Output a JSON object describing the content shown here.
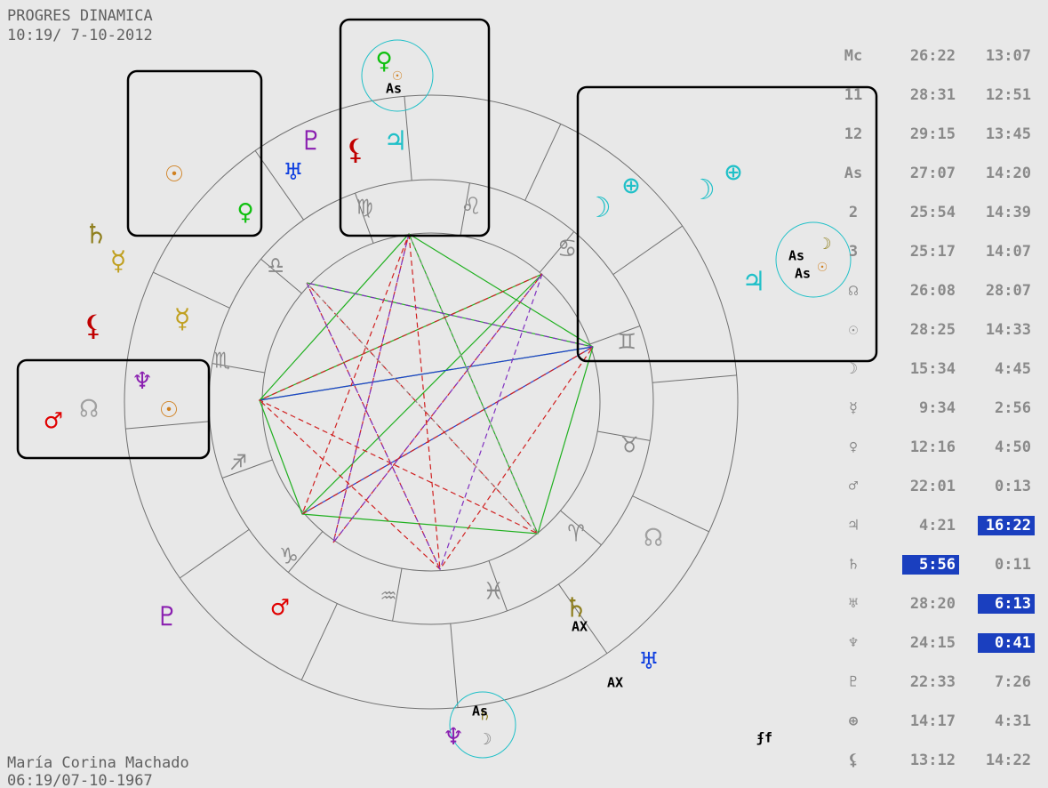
{
  "header": {
    "title": "PROGRES DINAMICA",
    "date": "10:19/ 7-10-2012"
  },
  "footer": {
    "name": "María Corina Machado",
    "date": "06:19/07-10-1967"
  },
  "signs": [
    "♍",
    "♌",
    "♋",
    "♊",
    "♉",
    "♈",
    "♓",
    "♒",
    "♑",
    "♐",
    "♏",
    "♎"
  ],
  "planets": [
    {
      "glyph": "♇",
      "color": "#8a1fb0"
    },
    {
      "glyph": "⚸",
      "color": "#c00000"
    },
    {
      "glyph": "♃",
      "color": "#20c0c8"
    },
    {
      "glyph": "♅",
      "color": "#1040e0"
    },
    {
      "glyph": "♀",
      "color": "#10c010"
    },
    {
      "glyph": "☉",
      "color": "#d08020"
    },
    {
      "glyph": "☉",
      "color": "#d08020"
    },
    {
      "glyph": "♀",
      "color": "#10c010"
    },
    {
      "glyph": "♄",
      "color": "#908020"
    },
    {
      "glyph": "☿",
      "color": "#c0a020"
    },
    {
      "glyph": "⚸",
      "color": "#c00000"
    },
    {
      "glyph": "☿",
      "color": "#c0a020"
    },
    {
      "glyph": "♆",
      "color": "#8a1fb0"
    },
    {
      "glyph": "☊",
      "color": "#a0a0a0"
    },
    {
      "glyph": "♂",
      "color": "#e00000"
    },
    {
      "glyph": "☉",
      "color": "#d08020"
    },
    {
      "glyph": "☽",
      "color": "#20c0c8"
    },
    {
      "glyph": "⊕",
      "color": "#20c0c8"
    },
    {
      "glyph": "☽",
      "color": "#20c0c8"
    },
    {
      "glyph": "⊕",
      "color": "#20c0c8"
    },
    {
      "glyph": "♃",
      "color": "#20c0c8"
    },
    {
      "glyph": "☽",
      "color": "#908020"
    },
    {
      "glyph": "☉",
      "color": "#d08020"
    },
    {
      "glyph": "☊",
      "color": "#a0a0a0"
    },
    {
      "glyph": "♄",
      "color": "#908020"
    },
    {
      "glyph": "♅",
      "color": "#1040e0"
    },
    {
      "glyph": "♇",
      "color": "#8a1fb0"
    },
    {
      "glyph": "♂",
      "color": "#e00000"
    },
    {
      "glyph": "♆",
      "color": "#8a1fb0"
    },
    {
      "glyph": "♄",
      "color": "#908020"
    },
    {
      "glyph": "☽",
      "color": "#808080"
    }
  ],
  "labels": [
    "As",
    "As",
    "As",
    "As",
    "AX",
    "AX",
    "ʄf"
  ],
  "table": {
    "rows": [
      {
        "label": "Mc",
        "pos": "26:22",
        "dyn": "13:07"
      },
      {
        "label": "11",
        "pos": "28:31",
        "dyn": "12:51"
      },
      {
        "label": "12",
        "pos": "29:15",
        "dyn": "13:45"
      },
      {
        "label": "As",
        "pos": "27:07",
        "dyn": "14:20"
      },
      {
        "label": "2",
        "pos": "25:54",
        "dyn": "14:39"
      },
      {
        "label": "3",
        "pos": "25:17",
        "dyn": "14:07"
      },
      {
        "label": "☊",
        "pos": "26:08",
        "dyn": "28:07"
      },
      {
        "label": "☉",
        "pos": "28:25",
        "dyn": "14:33"
      },
      {
        "label": "☽",
        "pos": "15:34",
        "dyn": "4:45"
      },
      {
        "label": "☿",
        "pos": "9:34",
        "dyn": "2:56"
      },
      {
        "label": "♀",
        "pos": "12:16",
        "dyn": "4:50"
      },
      {
        "label": "♂",
        "pos": "22:01",
        "dyn": "0:13"
      },
      {
        "label": "♃",
        "pos": "4:21",
        "dyn": "16:22",
        "highlight": "dyn"
      },
      {
        "label": "♄",
        "pos": "5:56",
        "dyn": "0:11",
        "highlight": "pos"
      },
      {
        "label": "♅",
        "pos": "28:20",
        "dyn": "6:13",
        "highlight": "dyn"
      },
      {
        "label": "♆",
        "pos": "24:15",
        "dyn": "0:41",
        "highlight": "dyn"
      },
      {
        "label": "♇",
        "pos": "22:33",
        "dyn": "7:26"
      },
      {
        "label": "⊕",
        "pos": "14:17",
        "dyn": "4:31"
      },
      {
        "label": "⚸",
        "pos": "13:12",
        "dyn": "14:22"
      }
    ]
  }
}
